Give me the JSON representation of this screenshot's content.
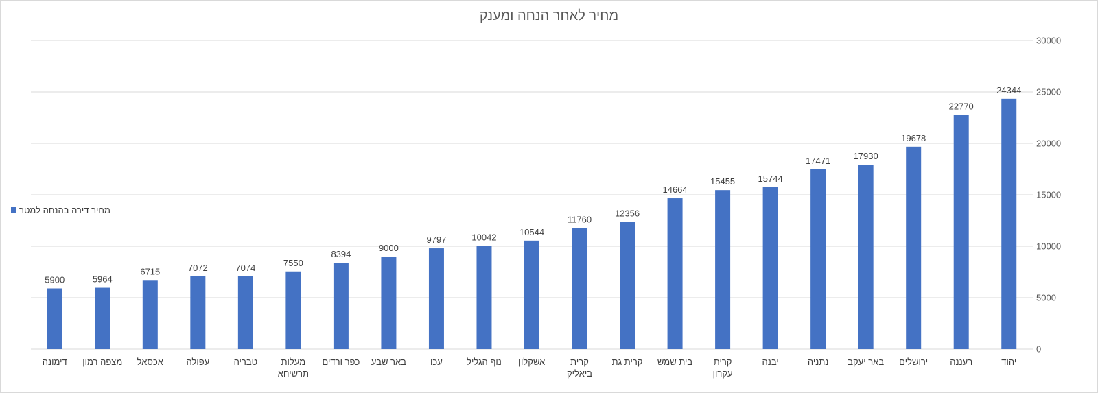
{
  "chart_data": {
    "type": "bar",
    "title": "מחיר לאחר הנחה ומענק",
    "xlabel": "",
    "ylabel": "",
    "ylim": [
      0,
      30000
    ],
    "yticks": [
      0,
      5000,
      10000,
      15000,
      20000,
      25000,
      30000
    ],
    "grid": true,
    "y_axis_side": "right",
    "legend_position": "left",
    "categories": [
      "דימונה",
      "מצפה רמון",
      "אכסאל",
      "עפולה",
      "טבריה",
      "מעלות תרשיחא",
      "כפר ורדים",
      "באר שבע",
      "עכו",
      "נוף הגליל",
      "אשקלון",
      "קרית ביאליק",
      "קרית גת",
      "בית שמש",
      "קרית עקרון",
      "יבנה",
      "נתניה",
      "באר יעקב",
      "ירושלים",
      "רעננה",
      "יהוד"
    ],
    "series": [
      {
        "name": "מחיר דירה בהנחה למטר",
        "color": "#4472c4",
        "values": [
          5900,
          5964,
          6715,
          7072,
          7074,
          7550,
          8394,
          9000,
          9797,
          10042,
          10544,
          11760,
          12356,
          14664,
          15455,
          15744,
          17471,
          17930,
          19678,
          22770,
          24344
        ]
      }
    ]
  },
  "colors": {
    "bar": "#4472c4",
    "grid": "#d9d9d9",
    "text": "#404040"
  }
}
